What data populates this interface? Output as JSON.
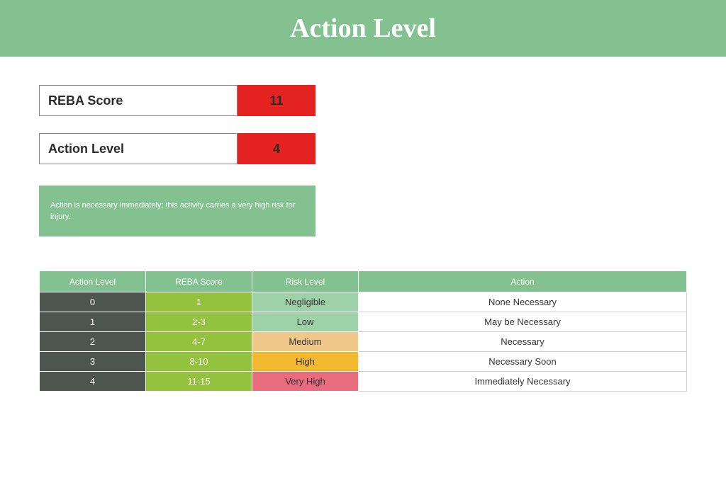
{
  "colors": {
    "header_bg": "#83c191",
    "header_text": "#ffffff",
    "score_value_bg": "#e42320",
    "message_bg": "#83c191",
    "table_header_bg": "#83c191",
    "col_action_level_bg": "#4c554e",
    "col_reba_score_bg": "#93c23f",
    "risk_negligible_bg": "#9ed1a7",
    "risk_low_bg": "#9ed1a7",
    "risk_medium_bg": "#f0c889",
    "risk_high_bg": "#f2b92f",
    "risk_veryhigh_bg": "#e86b7e"
  },
  "header": {
    "title": "Action Level"
  },
  "scores": {
    "reba": {
      "label": "REBA Score",
      "value": "11"
    },
    "action_level": {
      "label": "Action Level",
      "value": "4"
    }
  },
  "message": "Action is necessary immediately; this activity carries a very high risk for injury.",
  "table": {
    "columns": [
      "Action Level",
      "REBA Score",
      "Risk Level",
      "Action"
    ],
    "rows": [
      {
        "action_level": "0",
        "reba_score": "1",
        "risk": "Negligible",
        "risk_color_key": "risk_negligible_bg",
        "action": "None Necessary"
      },
      {
        "action_level": "1",
        "reba_score": "2-3",
        "risk": "Low",
        "risk_color_key": "risk_low_bg",
        "action": "May be Necessary"
      },
      {
        "action_level": "2",
        "reba_score": "4-7",
        "risk": "Medium",
        "risk_color_key": "risk_medium_bg",
        "action": "Necessary"
      },
      {
        "action_level": "3",
        "reba_score": "8-10",
        "risk": "High",
        "risk_color_key": "risk_high_bg",
        "action": "Necessary Soon"
      },
      {
        "action_level": "4",
        "reba_score": "11-15",
        "risk": "Very High",
        "risk_color_key": "risk_veryhigh_bg",
        "action": "Immediately Necessary"
      }
    ]
  }
}
